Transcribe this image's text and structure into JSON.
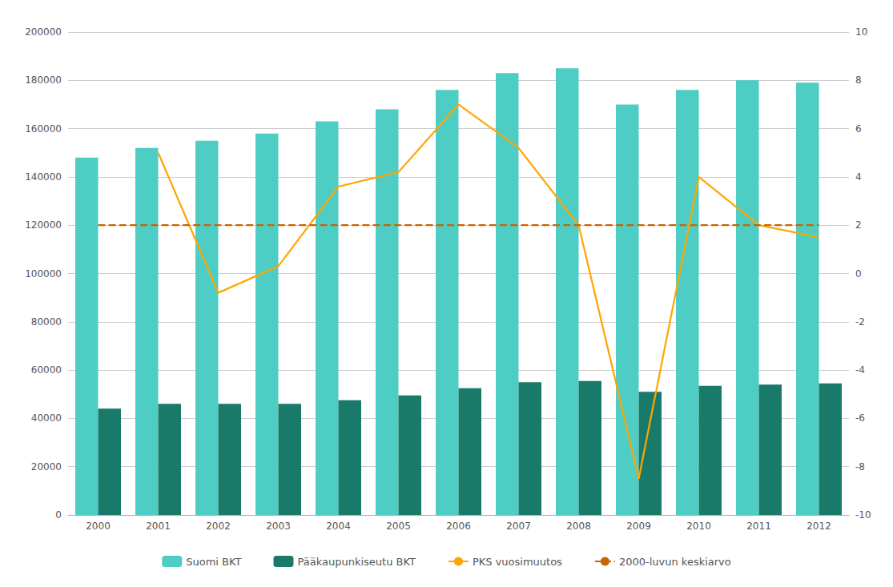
{
  "chart_data": {
    "type": "bar",
    "categories": [
      "2000",
      "2001",
      "2002",
      "2003",
      "2004",
      "2005",
      "2006",
      "2007",
      "2008",
      "2009",
      "2010",
      "2011",
      "2012"
    ],
    "series": [
      {
        "name": "Suomi BKT",
        "type": "bar",
        "color": "#4ECDC4",
        "values": [
          148000,
          152000,
          155000,
          158000,
          163000,
          168000,
          176000,
          183000,
          185000,
          170000,
          176000,
          180000,
          179000
        ]
      },
      {
        "name": "Pääkaupunkiseutu BKT",
        "type": "bar",
        "color": "#1A7A6A",
        "values": [
          44000,
          46000,
          46000,
          46000,
          47500,
          49500,
          52500,
          55000,
          55500,
          51000,
          53500,
          54000,
          54500
        ]
      },
      {
        "name": "PKS vuosimuutos",
        "type": "line",
        "axis": "y2",
        "color": "#FFA500",
        "line_style": "solid",
        "values": [
          null,
          5.0,
          -0.8,
          0.3,
          3.6,
          4.2,
          7.0,
          5.2,
          2.0,
          -8.5,
          4.0,
          2.0,
          1.5
        ]
      },
      {
        "name": "2000-luvun keskiarvo",
        "type": "line",
        "axis": "y2",
        "color": "#C86400",
        "line_style": "dashed",
        "values": [
          2.0,
          2.0,
          2.0,
          2.0,
          2.0,
          2.0,
          2.0,
          2.0,
          2.0,
          2.0,
          2.0,
          2.0,
          2.0
        ]
      }
    ],
    "ylim": [
      0,
      200000
    ],
    "yticks": [
      0,
      20000,
      40000,
      60000,
      80000,
      100000,
      120000,
      140000,
      160000,
      180000,
      200000
    ],
    "y2lim": [
      -10,
      10
    ],
    "y2ticks": [
      -10,
      -8,
      -6,
      -4,
      -2,
      0,
      2,
      4,
      6,
      8,
      10
    ],
    "grid": true,
    "legend": "bottom"
  }
}
